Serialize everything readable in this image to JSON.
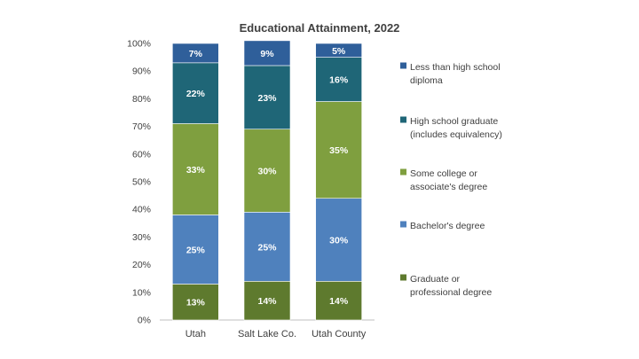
{
  "chart_data": {
    "type": "bar",
    "stacked": true,
    "title": "Educational Attainment, 2022",
    "categories": [
      "Utah",
      "Salt Lake Co.",
      "Utah County"
    ],
    "ylim": [
      0,
      100
    ],
    "yticks": [
      "0%",
      "10%",
      "20%",
      "30%",
      "40%",
      "50%",
      "60%",
      "70%",
      "80%",
      "90%",
      "100%"
    ],
    "grid": false,
    "legend_position": "right",
    "series": [
      {
        "name": "Graduate or professional degree",
        "legend_lines": [
          "Graduate or",
          "professional degree"
        ],
        "color": "#5e7a2e",
        "values": [
          13,
          14,
          14
        ],
        "labels": [
          "13%",
          "14%",
          "14%"
        ]
      },
      {
        "name": "Bachelor's degree",
        "legend_lines": [
          "Bachelor's degree"
        ],
        "color": "#4f81bd",
        "values": [
          25,
          25,
          30
        ],
        "labels": [
          "25%",
          "25%",
          "30%"
        ]
      },
      {
        "name": "Some college or associate's degree",
        "legend_lines": [
          "Some college or",
          "associate's degree"
        ],
        "color": "#7f9f3f",
        "values": [
          33,
          30,
          35
        ],
        "labels": [
          "33%",
          "30%",
          "35%"
        ]
      },
      {
        "name": "High school graduate (includes equivalency)",
        "legend_lines": [
          "High school graduate",
          "(includes equivalency)"
        ],
        "color": "#1f6677",
        "values": [
          22,
          23,
          16
        ],
        "labels": [
          "22%",
          "23%",
          "16%"
        ]
      },
      {
        "name": "Less than high school diploma",
        "legend_lines": [
          "Less than high school",
          "diploma"
        ],
        "color": "#2f5f9a",
        "values": [
          7,
          9,
          5
        ],
        "labels": [
          "7%",
          "9%",
          "5%"
        ]
      }
    ]
  }
}
